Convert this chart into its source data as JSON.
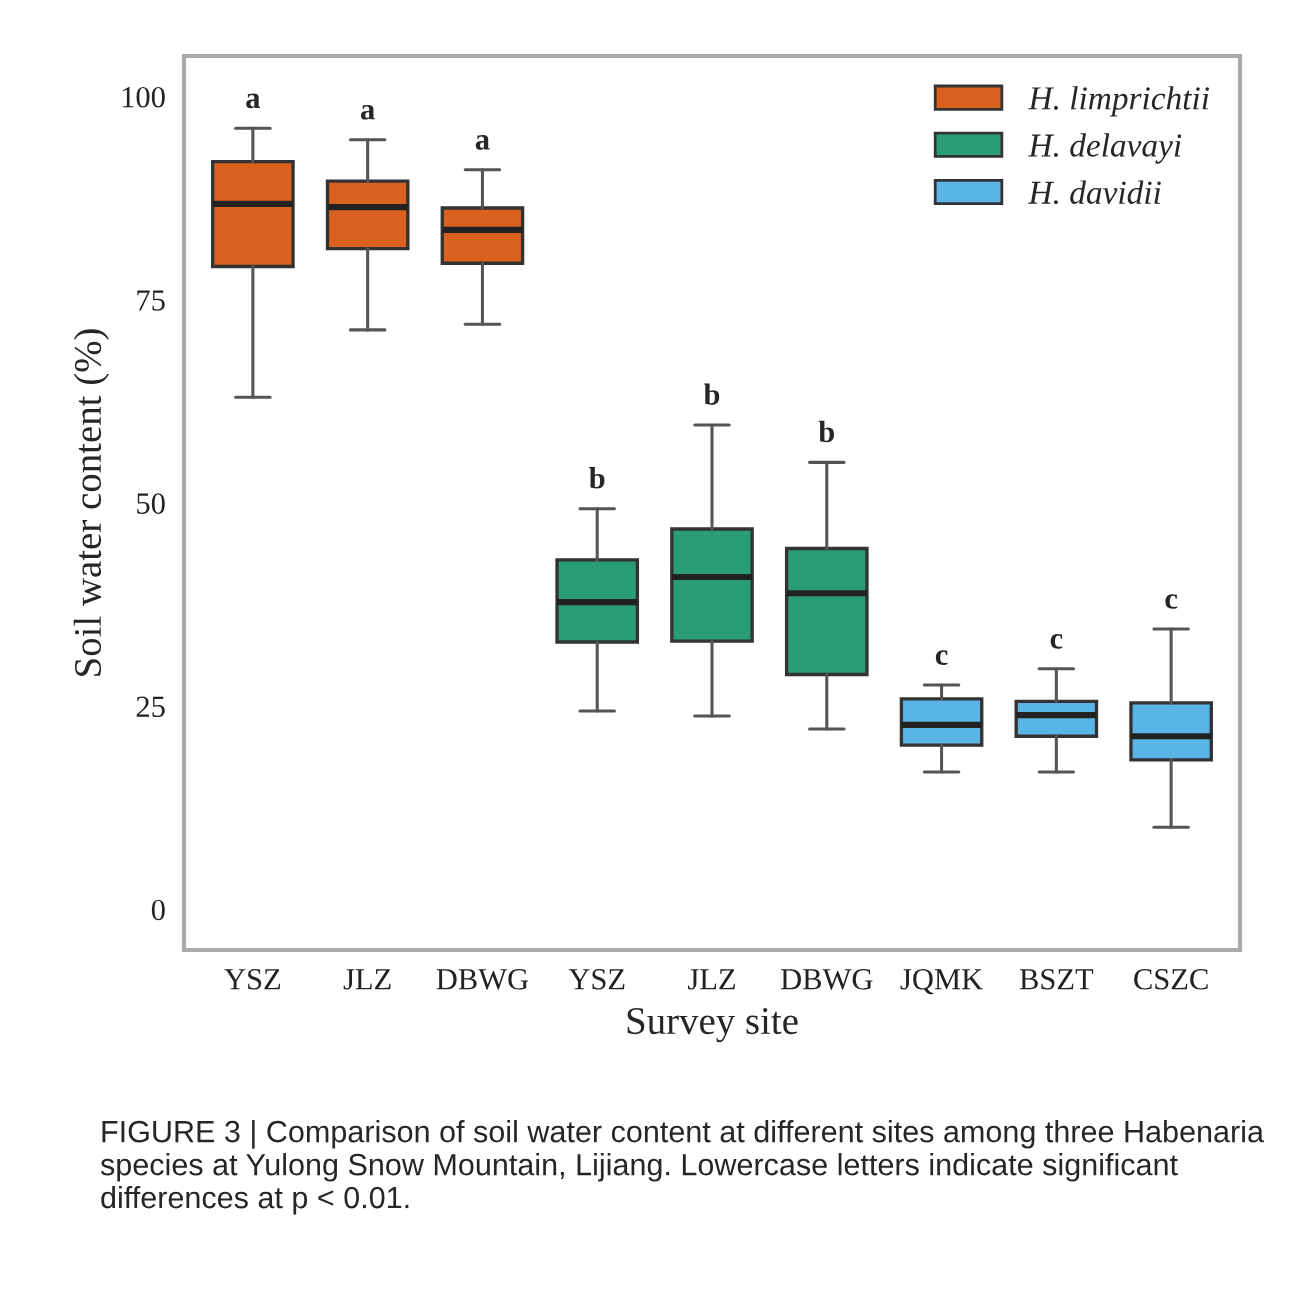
{
  "chart_data": {
    "type": "box",
    "xlabel": "Survey site",
    "ylabel": "Soil water content (%)",
    "categories": [
      "YSZ",
      "JLZ",
      "DBWG",
      "YSZ",
      "JLZ",
      "DBWG",
      "JQMK",
      "BSZT",
      "CSZC"
    ],
    "series": [
      {
        "name": "H. limprichtii",
        "color": "#d9601e",
        "boxes": [
          {
            "low": 63.0,
            "q1": 79.1,
            "median": 86.8,
            "q3": 92.0,
            "high": 96.1
          },
          {
            "low": 71.3,
            "q1": 81.3,
            "median": 86.4,
            "q3": 89.6,
            "high": 94.7
          },
          {
            "low": 72.0,
            "q1": 79.5,
            "median": 83.6,
            "q3": 86.3,
            "high": 91.0
          },
          null,
          null,
          null,
          null,
          null,
          null
        ]
      },
      {
        "name": "H. delavayi",
        "color": "#2a9d74",
        "boxes": [
          null,
          null,
          null,
          {
            "low": 24.4,
            "q1": 32.9,
            "median": 37.8,
            "q3": 43.0,
            "high": 49.3
          },
          {
            "low": 23.8,
            "q1": 33.0,
            "median": 40.9,
            "q3": 46.8,
            "high": 59.6
          },
          {
            "low": 22.2,
            "q1": 28.9,
            "median": 38.9,
            "q3": 44.4,
            "high": 55.0
          },
          null,
          null,
          null
        ]
      },
      {
        "name": "H. davidii",
        "color": "#5ab4e5",
        "boxes": [
          null,
          null,
          null,
          null,
          null,
          null,
          {
            "low": 16.9,
            "q1": 20.2,
            "median": 22.7,
            "q3": 25.9,
            "high": 27.6
          },
          {
            "low": 16.9,
            "q1": 21.3,
            "median": 23.9,
            "q3": 25.6,
            "high": 29.6
          },
          {
            "low": 10.1,
            "q1": 18.4,
            "median": 21.3,
            "q3": 25.4,
            "high": 34.5
          }
        ]
      }
    ],
    "ylim": [
      -5,
      105
    ],
    "yticks": [
      0,
      25,
      50,
      75,
      100
    ],
    "grid": false,
    "legend": "top right",
    "annotations": [
      "a",
      "a",
      "a",
      "b",
      "b",
      "b",
      "c",
      "c",
      "c",
      "FIGURE 3 | Comparison of soil water content at different sites among three Habenaria species at Yulong Snow Mountain, Lijiang. Lowercase letters indicate significant differences at p < 0.01."
    ]
  }
}
